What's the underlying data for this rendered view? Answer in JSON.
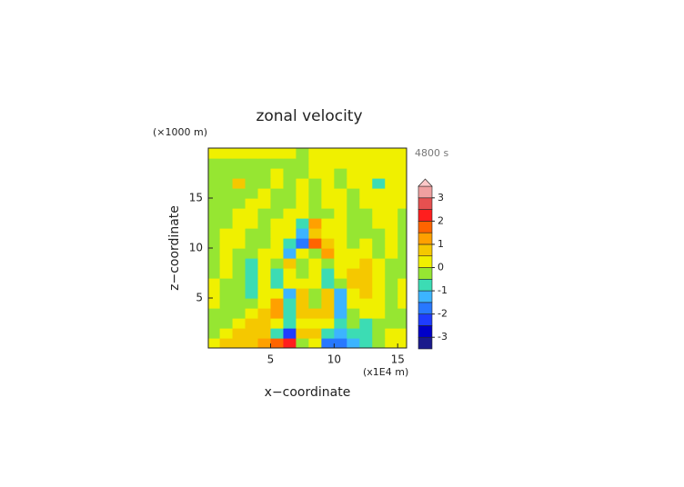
{
  "chart_data": {
    "type": "contour",
    "title": "zonal velocity",
    "y_unit": "(×1000 m)",
    "time_label": "4800 s",
    "xlabel": "x−coordinate",
    "ylabel": "z−coordinate",
    "x_unit": "(x1E4 m)",
    "xlim": [
      0.1,
      15.7
    ],
    "ylim": [
      0,
      20
    ],
    "xticks": [
      5,
      10,
      15
    ],
    "yticks": [
      5,
      10,
      15
    ],
    "x": [
      0.5,
      1.5,
      2.5,
      3.5,
      4.5,
      5.5,
      6.5,
      7.5,
      8.5,
      9.5,
      10.5,
      11.5,
      12.5,
      13.5,
      14.5,
      15.5
    ],
    "y": [
      0.5,
      1.5,
      2.5,
      3.5,
      4.5,
      5.5,
      6.5,
      7.5,
      8.5,
      9.5,
      10.5,
      11.5,
      12.5,
      13.5,
      14.5,
      15.5,
      16.5,
      17.5,
      18.5,
      19.5
    ],
    "z": [
      [
        0.2,
        0.6,
        0.6,
        0.6,
        1.2,
        1.7,
        2.2,
        -0.2,
        0.2,
        -1.7,
        -1.7,
        -1.2,
        -0.7,
        -0.2,
        0.2,
        0.2
      ],
      [
        -0.2,
        0.2,
        0.6,
        0.6,
        0.6,
        -0.7,
        -2.2,
        0.6,
        0.6,
        -0.7,
        -1.2,
        -0.7,
        -0.7,
        -0.2,
        0.2,
        0.2
      ],
      [
        -0.2,
        -0.2,
        0.2,
        0.6,
        0.6,
        0.2,
        -0.7,
        0.2,
        0.2,
        0.2,
        -0.7,
        -0.2,
        -0.7,
        -0.2,
        -0.2,
        -0.2
      ],
      [
        -0.2,
        -0.2,
        -0.2,
        0.2,
        0.6,
        1.2,
        -0.7,
        0.6,
        0.6,
        0.6,
        -1.2,
        -0.2,
        0.2,
        0.2,
        -0.2,
        -0.2
      ],
      [
        0.2,
        -0.2,
        -0.2,
        -0.2,
        0.2,
        1.2,
        -0.7,
        0.6,
        -0.2,
        0.6,
        -1.2,
        0.2,
        0.2,
        0.2,
        -0.2,
        0.2
      ],
      [
        0.2,
        -0.2,
        -0.2,
        -0.7,
        0.2,
        0.2,
        -1.2,
        0.6,
        -0.2,
        0.6,
        -1.2,
        0.2,
        0.6,
        0.2,
        -0.2,
        0.2
      ],
      [
        0.2,
        -0.2,
        -0.2,
        -0.7,
        0.2,
        -0.7,
        0.2,
        0.2,
        0.2,
        -0.7,
        -0.2,
        0.6,
        0.6,
        0.2,
        -0.2,
        0.2
      ],
      [
        -0.2,
        0.2,
        -0.2,
        -0.7,
        0.2,
        -0.7,
        0.2,
        -0.2,
        0.2,
        -0.7,
        0.2,
        0.6,
        0.6,
        0.2,
        -0.2,
        -0.2
      ],
      [
        -0.2,
        0.2,
        -0.2,
        -0.7,
        0.2,
        -0.2,
        0.6,
        -0.2,
        0.2,
        -0.2,
        0.2,
        0.2,
        0.6,
        0.2,
        -0.2,
        -0.2
      ],
      [
        -0.2,
        0.2,
        -0.2,
        -0.2,
        0.2,
        0.2,
        -1.2,
        0.2,
        -0.2,
        1.2,
        0.2,
        0.2,
        0.2,
        -0.2,
        0.2,
        -0.2
      ],
      [
        -0.2,
        0.2,
        0.2,
        -0.2,
        -0.2,
        0.2,
        -0.7,
        -1.7,
        1.7,
        0.6,
        0.2,
        -0.2,
        0.2,
        -0.2,
        0.2,
        -0.2
      ],
      [
        -0.2,
        0.2,
        0.2,
        -0.2,
        -0.2,
        0.2,
        0.2,
        -1.3,
        0.8,
        0.2,
        0.2,
        -0.2,
        -0.2,
        -0.2,
        0.2,
        -0.2
      ],
      [
        -0.2,
        -0.2,
        0.2,
        0.2,
        -0.2,
        0.2,
        0.2,
        -0.7,
        1.2,
        0.2,
        0.2,
        -0.2,
        -0.2,
        0.2,
        0.2,
        -0.2
      ],
      [
        -0.2,
        -0.2,
        0.2,
        0.2,
        -0.2,
        -0.2,
        0.2,
        0.2,
        -0.2,
        -0.2,
        0.2,
        -0.2,
        -0.2,
        0.2,
        0.2,
        -0.2
      ],
      [
        -0.2,
        -0.2,
        -0.2,
        0.2,
        0.2,
        -0.2,
        -0.2,
        0.2,
        -0.2,
        0.2,
        0.2,
        -0.2,
        0.2,
        0.2,
        0.2,
        0.2
      ],
      [
        -0.2,
        -0.2,
        -0.2,
        -0.2,
        0.2,
        -0.2,
        -0.2,
        0.2,
        -0.2,
        0.2,
        0.2,
        -0.2,
        0.2,
        0.2,
        0.2,
        0.2
      ],
      [
        -0.2,
        -0.2,
        0.6,
        -0.2,
        -0.2,
        0.2,
        -0.2,
        0.2,
        -0.2,
        0.2,
        -0.2,
        0.2,
        0.2,
        -0.6,
        0.2,
        0.2
      ],
      [
        -0.2,
        -0.2,
        -0.2,
        -0.2,
        -0.2,
        0.2,
        -0.2,
        -0.2,
        0.2,
        0.2,
        -0.2,
        0.2,
        0.2,
        0.2,
        0.2,
        0.2
      ],
      [
        -0.2,
        -0.2,
        -0.2,
        -0.2,
        -0.2,
        -0.2,
        -0.2,
        -0.2,
        0.2,
        0.2,
        0.2,
        0.2,
        0.2,
        0.2,
        0.2,
        0.2
      ],
      [
        0.2,
        0.2,
        0.2,
        0.2,
        0.2,
        0.2,
        0.2,
        -0.2,
        0.2,
        0.2,
        0.2,
        0.2,
        0.2,
        0.2,
        0.2,
        0.2
      ]
    ],
    "levels": [
      -3.5,
      -3,
      -2.5,
      -2,
      -1.5,
      -1,
      -0.5,
      0,
      0.5,
      1,
      1.5,
      2,
      2.5,
      3,
      3.5
    ],
    "colors": [
      "#1a1a8c",
      "#0000c8",
      "#1e3cff",
      "#2878ff",
      "#3cb4ff",
      "#3cdcb4",
      "#96e632",
      "#f0f000",
      "#f5c800",
      "#ffa000",
      "#ff6400",
      "#ff1e1e",
      "#e65050",
      "#f0a0a0"
    ],
    "over_color": "#ffc8c8",
    "cbar_ticks": [
      -3,
      -2,
      -1,
      0,
      1,
      2,
      3
    ]
  }
}
